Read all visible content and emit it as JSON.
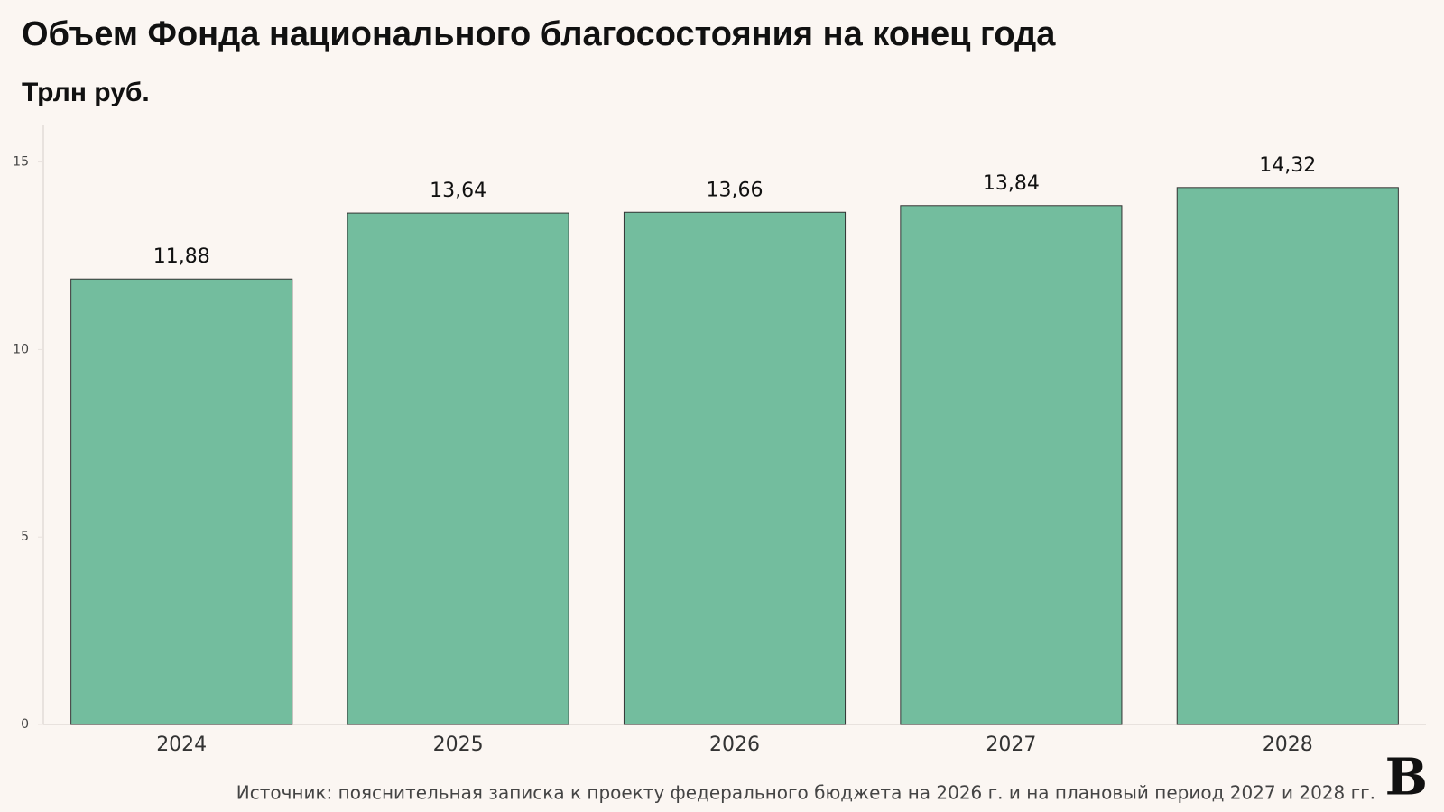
{
  "chart_data": {
    "type": "bar",
    "title": "Объем Фонда национального благосостояния на конец года",
    "subtitle": "Трлн руб.",
    "categories": [
      "2024",
      "2025",
      "2026",
      "2027",
      "2028"
    ],
    "values": [
      11.88,
      13.64,
      13.66,
      13.84,
      14.32
    ],
    "value_labels": [
      "11,88",
      "13,64",
      "13,66",
      "13,84",
      "14,32"
    ],
    "color": "#73bd9e",
    "ylim": [
      0,
      16
    ],
    "yticks": [
      0,
      5,
      10,
      15
    ],
    "grid": false,
    "source": "Источник: пояснительная записка к проекту федерального бюджета на 2026 г. и на плановый период 2027 и 2028 гг.",
    "logo": "В"
  }
}
